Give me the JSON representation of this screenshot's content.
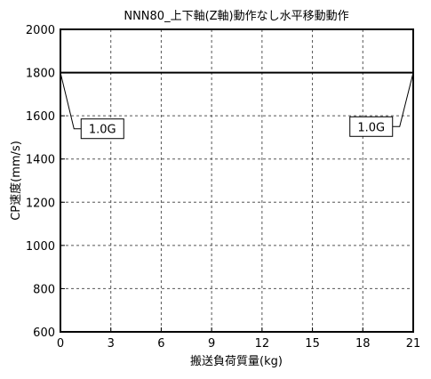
{
  "chart_data": {
    "type": "line",
    "title": "NNN80_上下軸(Z軸)動作なし水平移動動作",
    "xlabel": "搬送負荷質量(kg)",
    "ylabel": "CP速度(mm/s)",
    "xlim": [
      0,
      21
    ],
    "ylim": [
      600,
      2000
    ],
    "x_ticks": [
      0,
      3,
      6,
      9,
      12,
      15,
      18,
      21
    ],
    "y_ticks": [
      600,
      800,
      1000,
      1200,
      1400,
      1600,
      1800,
      2000
    ],
    "x_tick_labels": [
      "0",
      "3",
      "6",
      "9",
      "12",
      "15",
      "18",
      "21"
    ],
    "y_tick_labels": [
      "600",
      "800",
      "1000",
      "1200",
      "1400",
      "1600",
      "1800",
      "2000"
    ],
    "grid": true,
    "grid_style": "dashed",
    "series": [
      {
        "x": [
          0,
          21
        ],
        "y": [
          1800,
          1800
        ],
        "color": "#000000"
      }
    ],
    "annotations": [
      {
        "text": "1.0G",
        "point": [
          0,
          1800
        ],
        "box_at": [
          2.5,
          1540
        ]
      },
      {
        "text": "1.0G",
        "point": [
          21,
          1800
        ],
        "box_at": [
          18.5,
          1550
        ]
      }
    ]
  }
}
